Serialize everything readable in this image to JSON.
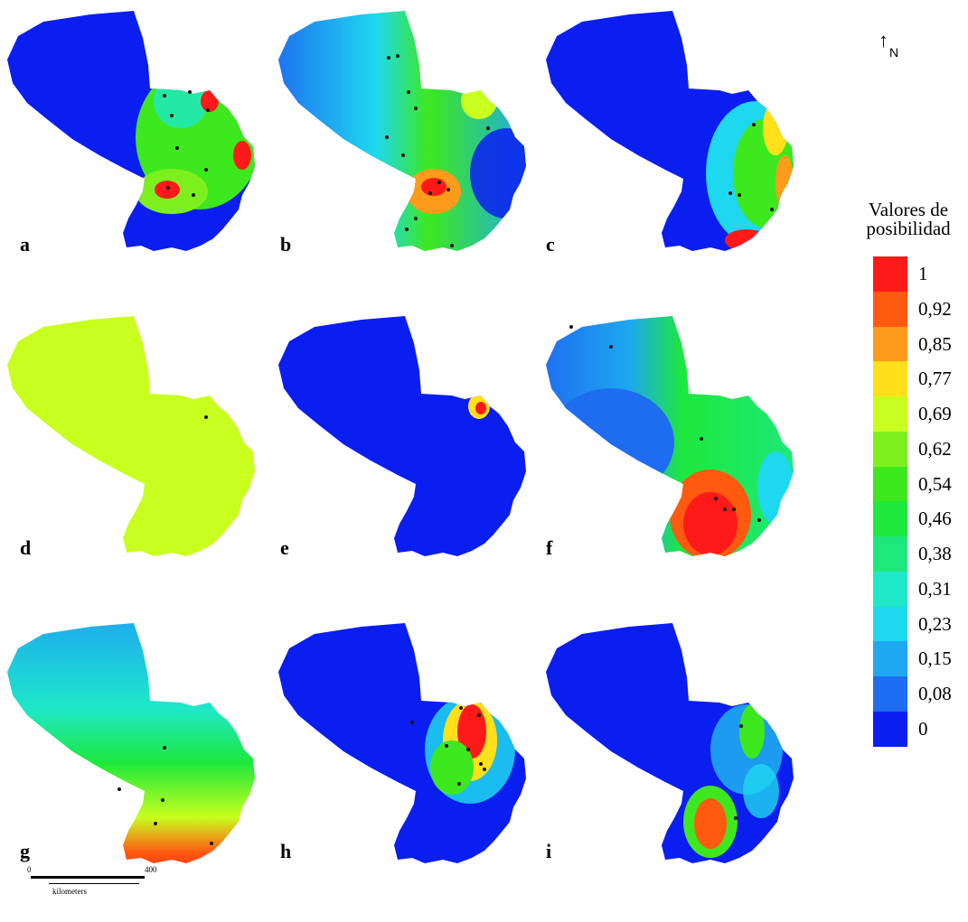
{
  "panels": [
    {
      "label": "a",
      "description": "blue west/north, high values east, hotspot south-center",
      "style": "east-hot"
    },
    {
      "label": "b",
      "description": "gradient west to east with central hotspot",
      "style": "center-hot"
    },
    {
      "label": "c",
      "description": "mostly blue with eastern green-yellow and red south",
      "style": "east-mild"
    },
    {
      "label": "d",
      "description": "uniform green-yellow",
      "style": "uniform"
    },
    {
      "label": "e",
      "description": "entirely blue with small northeast hotspot",
      "style": "ne-spot"
    },
    {
      "label": "f",
      "description": "cyan-blue west, green east, red southwest lobe",
      "style": "south-hot"
    },
    {
      "label": "g",
      "description": "blue north grading to red south",
      "style": "gradient"
    },
    {
      "label": "h",
      "description": "blue with east-center red hotspot",
      "style": "east-center-hot"
    },
    {
      "label": "i",
      "description": "blue with green east and red south lobe patches",
      "style": "south-patch"
    }
  ],
  "north_arrow": {
    "symbol": "↑",
    "label": "N"
  },
  "legend": {
    "title_line1": "Valores de",
    "title_line2": "posibilidad",
    "items": [
      {
        "label": "1",
        "color": "#ff1a1a"
      },
      {
        "label": "0,92",
        "color": "#ff5a10"
      },
      {
        "label": "0,85",
        "color": "#ff9b1a"
      },
      {
        "label": "0,77",
        "color": "#ffe01a"
      },
      {
        "label": "0,69",
        "color": "#c8ff1e"
      },
      {
        "label": "0,62",
        "color": "#7cf01e"
      },
      {
        "label": "0,54",
        "color": "#3ee81e"
      },
      {
        "label": "0,46",
        "color": "#1ee83c"
      },
      {
        "label": "0,38",
        "color": "#1ee87c"
      },
      {
        "label": "0,31",
        "color": "#1ee8c8"
      },
      {
        "label": "0,23",
        "color": "#1ed8f0"
      },
      {
        "label": "0,15",
        "color": "#1ea8f0"
      },
      {
        "label": "0,08",
        "color": "#1e6cf0"
      },
      {
        "label": "0",
        "color": "#0a1ef0"
      }
    ]
  },
  "scale_bar": {
    "start": "0",
    "end": "400",
    "unit": "kilometers"
  }
}
